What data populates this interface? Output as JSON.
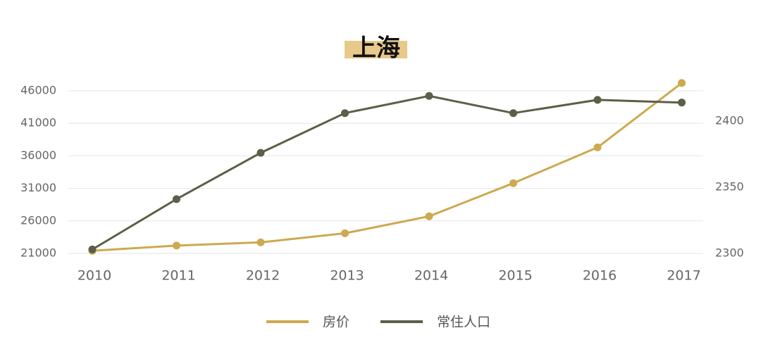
{
  "chart_data": {
    "type": "line",
    "title": "上海",
    "categories": [
      "2010",
      "2011",
      "2012",
      "2013",
      "2014",
      "2015",
      "2016",
      "2017"
    ],
    "axes": {
      "y_left": {
        "ticks": [
          "21000",
          "26000",
          "31000",
          "36000",
          "41000",
          "46000"
        ],
        "range": [
          21000,
          46000
        ]
      },
      "y_right": {
        "ticks": [
          "2300",
          "2350",
          "2400"
        ],
        "range": [
          2300,
          2400
        ]
      }
    },
    "series": [
      {
        "name": "房价",
        "axis": "left",
        "color": "#CDA94F",
        "values": [
          21400,
          22200,
          22700,
          24100,
          26700,
          31800,
          37300,
          47200
        ]
      },
      {
        "name": "常住人口",
        "axis": "right",
        "color": "#5B5F47",
        "values": [
          2303,
          2341,
          2376,
          2406,
          2419,
          2406,
          2416,
          2414
        ]
      }
    ],
    "grid": true,
    "legend": "bottom"
  }
}
